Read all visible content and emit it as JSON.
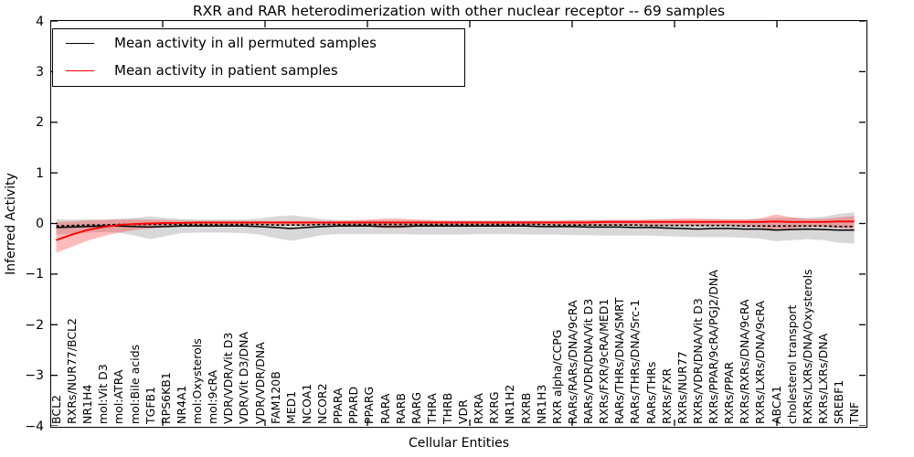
{
  "chart_data": {
    "type": "line",
    "title": "RXR and RAR heterodimerization with other nuclear receptor -- 69 samples",
    "xlabel": "Cellular Entities",
    "ylabel": "Inferred Activity",
    "ylim": [
      -4,
      4
    ],
    "yticks": [
      4,
      3,
      2,
      1,
      0,
      -1,
      -2,
      -3,
      -4
    ],
    "ytick_labels": [
      "4",
      "3",
      "2",
      "1",
      "0",
      "−1",
      "−2",
      "−3",
      "−4"
    ],
    "grid": false,
    "legend_position": "upper-left",
    "legend": [
      {
        "label": "Mean activity in all permuted samples",
        "color": "#000000"
      },
      {
        "label": "Mean activity in patient samples",
        "color": "#ff0000"
      }
    ],
    "categories": [
      "BCL2",
      "RXRs/NUR77/BCL2",
      "NR1H4",
      "mol:Vit D3",
      "mol:ATRA",
      "mol:Bile acids",
      "TGFB1",
      "RPS6KB1",
      "NR4A1",
      "mol:Oxysterols",
      "mol:9cRA",
      "VDR/VDR/Vit D3",
      "VDR/Vit D3/DNA",
      "VDR/VDR/DNA",
      "FAM120B",
      "MED1",
      "NCOA1",
      "NCOR2",
      "PPARA",
      "PPARD",
      "PPARG",
      "RARA",
      "RARB",
      "RARG",
      "THRA",
      "THRB",
      "VDR",
      "RXRA",
      "RXRG",
      "NR1H2",
      "RXRB",
      "NR1H3",
      "RXR alpha/CCPG",
      "RARs/RARs/DNA/9cRA",
      "RARs/VDR/DNA/Vit D3",
      "RXRs/FXR/9cRA/MED1",
      "RARs/THRs/DNA/SMRT",
      "RARs/THRs/DNA/Src-1",
      "RARs/THRs",
      "RXRs/FXR",
      "RXRs/NUR77",
      "RXRs/VDR/DNA/Vit D3",
      "RXRs/PPAR/9cRA/PGJ2/DNA",
      "RXRs/PPAR",
      "RXRs/RXRs/DNA/9cRA",
      "RXRs/LXRs/DNA/9cRA",
      "ABCA1",
      "cholesterol transport",
      "RXRs/LXRs/DNA/Oxysterols",
      "RXRs/LXRs/DNA",
      "SREBF1",
      "TNF"
    ],
    "series": [
      {
        "name": "Permuted samples activity band",
        "type": "band",
        "color": "#999999",
        "opacity": 0.38,
        "upper": [
          0.08,
          0.08,
          0.08,
          0.08,
          0.09,
          0.11,
          0.14,
          0.11,
          0.09,
          0.08,
          0.08,
          0.08,
          0.08,
          0.1,
          0.14,
          0.16,
          0.13,
          0.09,
          0.07,
          0.06,
          0.06,
          0.06,
          0.06,
          0.06,
          0.06,
          0.06,
          0.06,
          0.06,
          0.06,
          0.06,
          0.06,
          0.06,
          0.06,
          0.07,
          0.07,
          0.07,
          0.07,
          0.07,
          0.07,
          0.07,
          0.07,
          0.07,
          0.08,
          0.08,
          0.08,
          0.09,
          0.11,
          0.12,
          0.11,
          0.13,
          0.19,
          0.22
        ],
        "lower": [
          -0.22,
          -0.2,
          -0.18,
          -0.17,
          -0.18,
          -0.24,
          -0.31,
          -0.25,
          -0.19,
          -0.18,
          -0.18,
          -0.18,
          -0.19,
          -0.22,
          -0.29,
          -0.34,
          -0.29,
          -0.23,
          -0.21,
          -0.21,
          -0.21,
          -0.21,
          -0.21,
          -0.22,
          -0.22,
          -0.22,
          -0.22,
          -0.21,
          -0.21,
          -0.21,
          -0.22,
          -0.22,
          -0.22,
          -0.23,
          -0.23,
          -0.24,
          -0.24,
          -0.24,
          -0.24,
          -0.25,
          -0.26,
          -0.27,
          -0.27,
          -0.27,
          -0.28,
          -0.3,
          -0.35,
          -0.33,
          -0.31,
          -0.33,
          -0.38,
          -0.4
        ]
      },
      {
        "name": "Patient samples activity band",
        "type": "band",
        "color": "#ff2a2a",
        "opacity": 0.32,
        "upper": [
          0.03,
          0.04,
          0.06,
          0.07,
          0.08,
          0.08,
          0.08,
          0.07,
          0.06,
          0.05,
          0.05,
          0.05,
          0.05,
          0.05,
          0.05,
          0.05,
          0.05,
          0.05,
          0.05,
          0.06,
          0.08,
          0.1,
          0.1,
          0.08,
          0.06,
          0.05,
          0.05,
          0.05,
          0.05,
          0.05,
          0.05,
          0.05,
          0.05,
          0.06,
          0.06,
          0.07,
          0.07,
          0.07,
          0.08,
          0.09,
          0.1,
          0.1,
          0.09,
          0.08,
          0.08,
          0.1,
          0.18,
          0.12,
          0.09,
          0.09,
          0.12,
          0.15
        ],
        "lower": [
          -0.58,
          -0.46,
          -0.34,
          -0.25,
          -0.18,
          -0.13,
          -0.1,
          -0.07,
          -0.05,
          -0.04,
          -0.03,
          -0.03,
          -0.03,
          -0.03,
          -0.04,
          -0.04,
          -0.04,
          -0.03,
          -0.03,
          -0.04,
          -0.06,
          -0.09,
          -0.09,
          -0.06,
          -0.04,
          -0.03,
          -0.03,
          -0.03,
          -0.03,
          -0.03,
          -0.03,
          -0.03,
          -0.03,
          -0.04,
          -0.04,
          -0.04,
          -0.04,
          -0.04,
          -0.05,
          -0.05,
          -0.05,
          -0.05,
          -0.05,
          -0.05,
          -0.06,
          -0.08,
          -0.14,
          -0.1,
          -0.07,
          -0.07,
          -0.09,
          -0.11
        ]
      },
      {
        "name": "Mean activity in all permuted samples",
        "type": "line",
        "style": "solid",
        "color": "#000000",
        "width": 1.5,
        "values": [
          -0.08,
          -0.07,
          -0.06,
          -0.05,
          -0.05,
          -0.06,
          -0.07,
          -0.06,
          -0.05,
          -0.05,
          -0.05,
          -0.05,
          -0.05,
          -0.06,
          -0.08,
          -0.1,
          -0.08,
          -0.06,
          -0.05,
          -0.05,
          -0.05,
          -0.06,
          -0.06,
          -0.05,
          -0.05,
          -0.05,
          -0.05,
          -0.05,
          -0.05,
          -0.05,
          -0.05,
          -0.06,
          -0.06,
          -0.06,
          -0.07,
          -0.07,
          -0.07,
          -0.08,
          -0.08,
          -0.09,
          -0.1,
          -0.11,
          -0.1,
          -0.1,
          -0.11,
          -0.11,
          -0.13,
          -0.12,
          -0.11,
          -0.12,
          -0.13,
          -0.13
        ]
      },
      {
        "name": "Permuted samples dotted baseline",
        "type": "line",
        "style": "dotted",
        "color": "#000000",
        "width": 1.6,
        "values": [
          -0.05,
          -0.04,
          -0.03,
          -0.03,
          -0.02,
          -0.02,
          -0.02,
          -0.02,
          -0.02,
          -0.02,
          -0.02,
          -0.02,
          -0.02,
          -0.02,
          -0.03,
          -0.03,
          -0.03,
          -0.02,
          -0.02,
          -0.02,
          -0.02,
          -0.02,
          -0.02,
          -0.02,
          -0.02,
          -0.02,
          -0.02,
          -0.02,
          -0.02,
          -0.02,
          -0.02,
          -0.02,
          -0.03,
          -0.03,
          -0.03,
          -0.03,
          -0.03,
          -0.03,
          -0.04,
          -0.04,
          -0.04,
          -0.04,
          -0.04,
          -0.04,
          -0.05,
          -0.05,
          -0.05,
          -0.05,
          -0.05,
          -0.05,
          -0.06,
          -0.06
        ]
      },
      {
        "name": "Mean activity in patient samples",
        "type": "line",
        "style": "solid",
        "color": "#ff0000",
        "width": 1.9,
        "values": [
          -0.33,
          -0.22,
          -0.13,
          -0.07,
          -0.03,
          -0.01,
          0.0,
          0.01,
          0.01,
          0.02,
          0.02,
          0.02,
          0.02,
          0.02,
          0.02,
          0.02,
          0.02,
          0.02,
          0.02,
          0.02,
          0.02,
          0.02,
          0.02,
          0.02,
          0.02,
          0.02,
          0.02,
          0.02,
          0.02,
          0.02,
          0.02,
          0.02,
          0.02,
          0.02,
          0.02,
          0.03,
          0.03,
          0.03,
          0.03,
          0.03,
          0.03,
          0.03,
          0.03,
          0.03,
          0.03,
          0.03,
          0.04,
          0.03,
          0.03,
          0.03,
          0.04,
          0.04
        ]
      }
    ]
  }
}
